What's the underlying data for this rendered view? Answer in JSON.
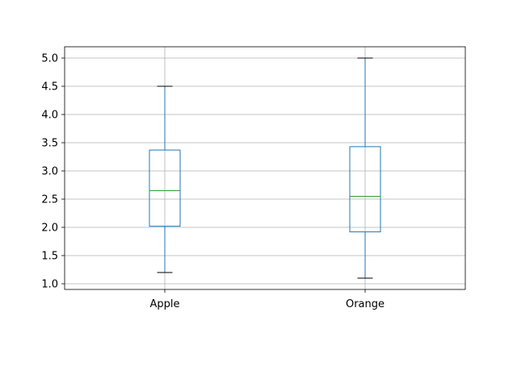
{
  "chart_data": {
    "type": "box",
    "categories": [
      "Apple",
      "Orange"
    ],
    "series": [
      {
        "whisker_low": 1.2,
        "q1": 2.02,
        "median": 2.65,
        "q3": 3.37,
        "whisker_high": 4.5
      },
      {
        "whisker_low": 1.1,
        "q1": 1.92,
        "median": 2.55,
        "q3": 3.43,
        "whisker_high": 5.0
      }
    ],
    "title": "",
    "xlabel": "",
    "ylabel": "",
    "ylim": [
      0.9,
      5.2
    ],
    "yticks": [
      1.0,
      1.5,
      2.0,
      2.5,
      3.0,
      3.5,
      4.0,
      4.5,
      5.0
    ],
    "ytick_labels": [
      "1.0",
      "1.5",
      "2.0",
      "2.5",
      "3.0",
      "3.5",
      "4.0",
      "4.5",
      "5.0"
    ],
    "grid": true,
    "colors": {
      "box": "#1f77b4",
      "median": "#2ca02c",
      "cap": "#000000",
      "grid": "#b0b0b0",
      "axes": "#000000"
    }
  }
}
